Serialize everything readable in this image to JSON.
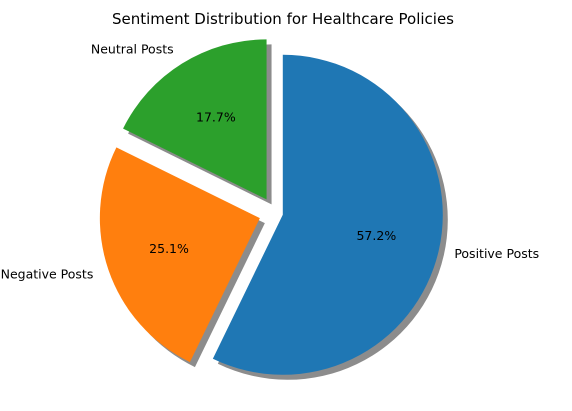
{
  "chart_data": {
    "type": "pie",
    "title": "Sentiment Distribution for Healthcare Policies",
    "categories": [
      "Positive Posts",
      "Negative Posts",
      "Neutral Posts"
    ],
    "values": [
      57.2,
      25.1,
      17.7
    ],
    "percent_labels": [
      "57.2%",
      "25.1%",
      "17.7%"
    ],
    "colors": [
      "#1f77b4",
      "#ff7f0e",
      "#2ca02c"
    ],
    "explode": [
      0.05,
      0.1,
      0.1
    ],
    "start_angle_deg": 90,
    "direction": "clockwise",
    "shadow": true
  }
}
